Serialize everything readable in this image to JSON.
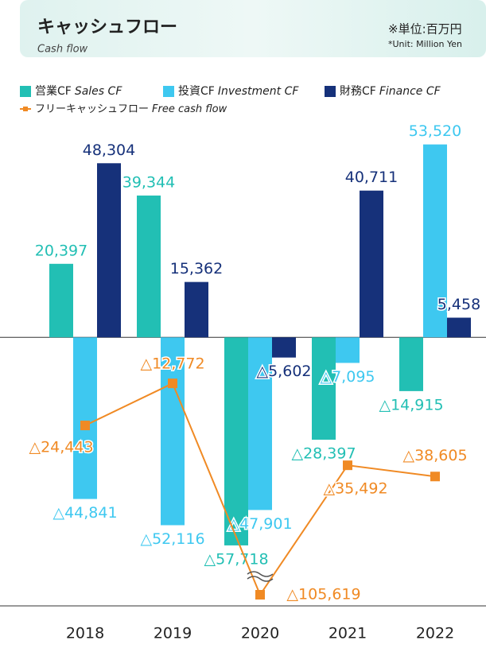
{
  "chart_data": {
    "type": "bar",
    "title": "キャッシュフロー",
    "subtitle": "Cash flow",
    "unit_note": "※単位:百万円",
    "unit_note_en": "*Unit: Million Yen",
    "categories": [
      "2018",
      "2019",
      "2020",
      "2021",
      "2022"
    ],
    "series": [
      {
        "name": "営業CF",
        "name_en": "Sales CF",
        "color": "#22bfb4",
        "values": [
          20397,
          39344,
          -57718,
          -28397,
          -14915
        ],
        "value_labels": [
          "20,397",
          "39,344",
          "△57,718",
          "△28,397",
          "△14,915"
        ]
      },
      {
        "name": "投資CF",
        "name_en": "Investment CF",
        "color": "#3ec8f0",
        "values": [
          -44841,
          -52116,
          -47901,
          -7095,
          53520
        ],
        "value_labels": [
          "△44,841",
          "△52,116",
          "△47,901",
          "△7,095",
          "53,520"
        ]
      },
      {
        "name": "財務CF",
        "name_en": "Finance CF",
        "color": "#16317a",
        "values": [
          48304,
          15362,
          -5602,
          40711,
          5458
        ],
        "value_labels": [
          "48,304",
          "15,362",
          "△5,602",
          "40,711",
          "5,458"
        ]
      },
      {
        "name": "フリーキャッシュフロー",
        "name_en": "Free cash flow",
        "color": "#f08a24",
        "type": "line",
        "values": [
          -24443,
          -12772,
          -105619,
          -35492,
          -38605
        ],
        "value_labels": [
          "△24,443",
          "△12,772",
          "△105,619",
          "△35,492",
          "△38,605"
        ]
      }
    ],
    "ylim": [
      -74500,
      60500
    ]
  }
}
